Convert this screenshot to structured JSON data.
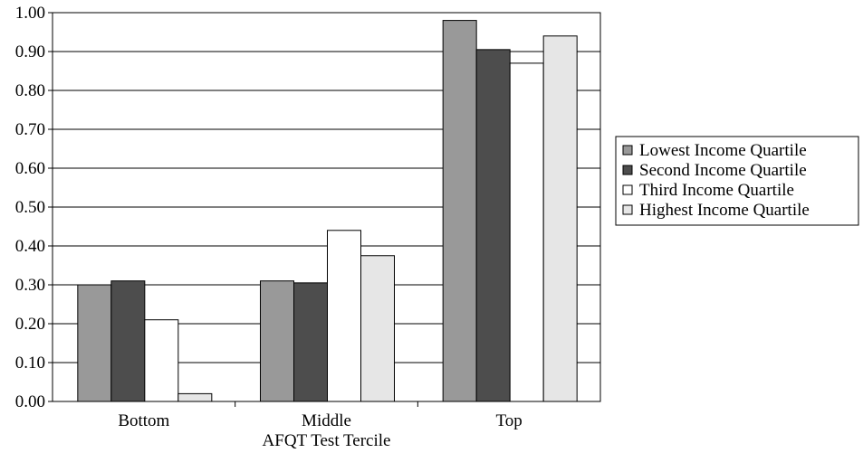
{
  "chart_data": {
    "type": "bar",
    "title": "",
    "xlabel": "AFQT Test Tercile",
    "ylabel": "",
    "categories": [
      "Bottom",
      "Middle",
      "Top"
    ],
    "series": [
      {
        "name": "Lowest Income Quartile",
        "values": [
          0.3,
          0.31,
          0.98
        ],
        "color": "#999999"
      },
      {
        "name": "Second Income Quartile",
        "values": [
          0.31,
          0.305,
          0.905
        ],
        "color": "#4d4d4d"
      },
      {
        "name": "Third Income Quartile",
        "values": [
          0.21,
          0.44,
          0.87
        ],
        "color": "#ffffff"
      },
      {
        "name": "Highest Income Quartile",
        "values": [
          0.02,
          0.375,
          0.94
        ],
        "color": "#e6e6e6"
      }
    ],
    "ylim": [
      0,
      1.0
    ],
    "yticks": [
      "0.00",
      "0.10",
      "0.20",
      "0.30",
      "0.40",
      "0.50",
      "0.60",
      "0.70",
      "0.80",
      "0.90",
      "1.00"
    ],
    "grid": true,
    "legend_position": "right"
  }
}
